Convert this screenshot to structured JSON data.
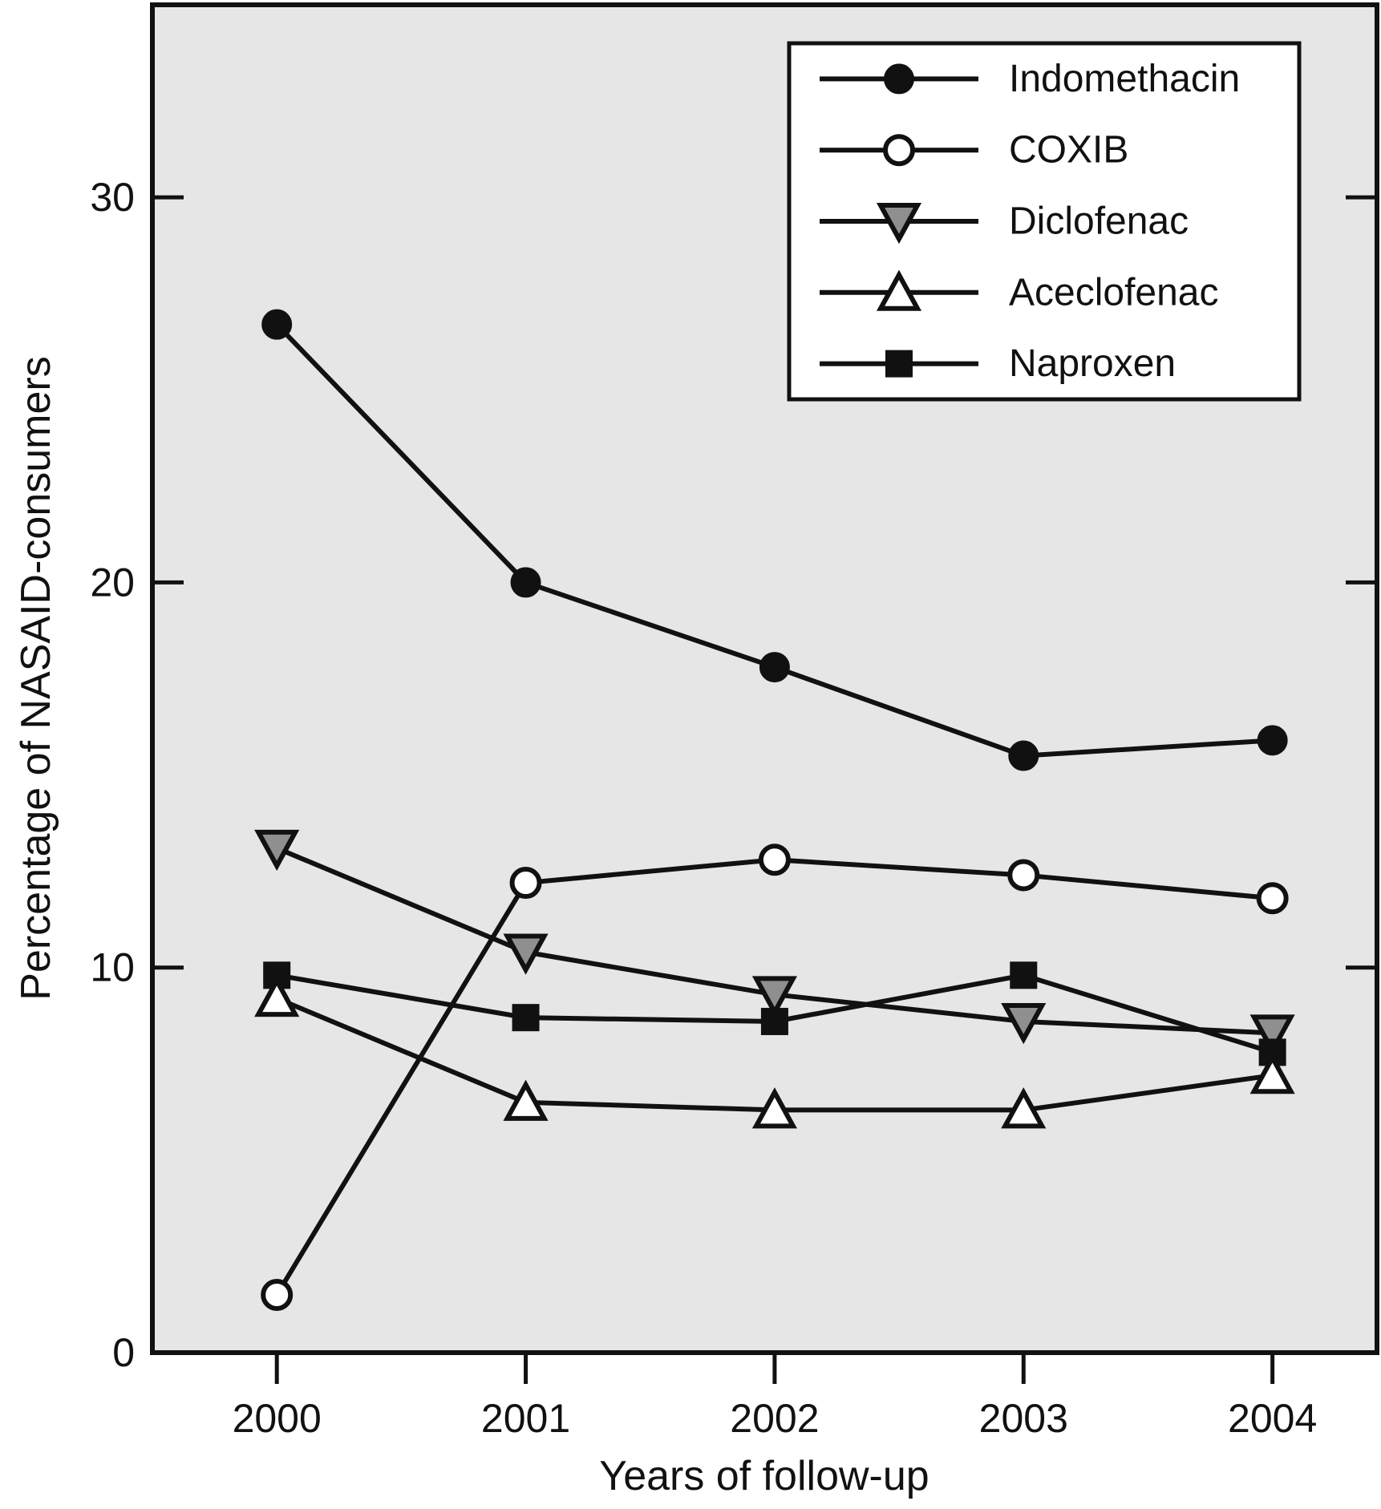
{
  "figure": {
    "background": "#ffffff",
    "plot_background": "#e6e6e6",
    "line_color": "#111111"
  },
  "chart_data": {
    "type": "line",
    "title": "",
    "xlabel": "Years of follow-up",
    "ylabel": "Percentage of NASAID-consumers",
    "x": [
      2000,
      2001,
      2002,
      2003,
      2004
    ],
    "x_tick_labels": [
      "2000",
      "2001",
      "2002",
      "2003",
      "2004"
    ],
    "y_ticks": [
      0,
      10,
      20,
      30
    ],
    "y_tick_labels": [
      "0",
      "10",
      "20",
      "30"
    ],
    "xlim": [
      1999.5,
      2004.42
    ],
    "ylim": [
      0,
      35
    ],
    "grid": false,
    "legend_position": "top-right",
    "plot_bg": "#e6e6e6",
    "series": [
      {
        "name": "Indomethacin",
        "marker": "filled-circle",
        "color": "#111111",
        "fill": "#111111",
        "values": [
          26.7,
          20.0,
          17.8,
          15.5,
          15.9
        ]
      },
      {
        "name": "COXIB",
        "marker": "open-circle",
        "color": "#111111",
        "fill": "#ffffff",
        "values": [
          1.5,
          12.2,
          12.8,
          12.4,
          11.8
        ]
      },
      {
        "name": "Diclofenac",
        "marker": "gray-triangle-down",
        "color": "#111111",
        "fill": "#8f8f8f",
        "values": [
          13.1,
          10.4,
          9.3,
          8.6,
          8.3
        ]
      },
      {
        "name": "Aceclofenac",
        "marker": "open-triangle-up",
        "color": "#111111",
        "fill": "#ffffff",
        "values": [
          9.2,
          6.5,
          6.3,
          6.3,
          7.2
        ]
      },
      {
        "name": "Naproxen",
        "marker": "filled-square",
        "color": "#111111",
        "fill": "#111111",
        "values": [
          9.8,
          8.7,
          8.6,
          9.8,
          7.8
        ]
      }
    ]
  }
}
